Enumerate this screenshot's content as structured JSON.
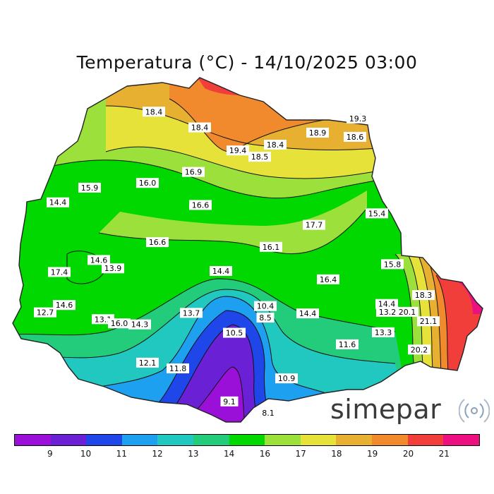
{
  "title": "Temperatura (°C) - 14/10/2025 03:00",
  "brand": "simepar",
  "icons": {
    "brand_mark": "radar-waves-icon"
  },
  "legend": {
    "colors": [
      "#9a10d8",
      "#6a21d6",
      "#1f46e8",
      "#1ea0f0",
      "#20c8c0",
      "#22cc7a",
      "#00d800",
      "#9ce03c",
      "#e6e23a",
      "#e8b030",
      "#f08a2c",
      "#f23e3a",
      "#ec1080"
    ],
    "labels": [
      "9",
      "10",
      "11",
      "12",
      "13",
      "14",
      "16",
      "17",
      "18",
      "19",
      "20",
      "21"
    ]
  },
  "map": {
    "value_labels": [
      {
        "text": "18.4",
        "lon": -52.62,
        "lat": -22.95
      },
      {
        "text": "18.4",
        "lon": -51.97,
        "lat": -23.25
      },
      {
        "text": "19.3",
        "lon": -49.73,
        "lat": -23.08
      },
      {
        "text": "18.9",
        "lon": -50.3,
        "lat": -23.35
      },
      {
        "text": "18.6",
        "lon": -49.77,
        "lat": -23.43
      },
      {
        "text": "19.4",
        "lon": -51.43,
        "lat": -23.69
      },
      {
        "text": "18.4",
        "lon": -50.9,
        "lat": -23.58
      },
      {
        "text": "18.5",
        "lon": -51.12,
        "lat": -23.81
      },
      {
        "text": "16.9",
        "lon": -52.06,
        "lat": -24.1
      },
      {
        "text": "16.0",
        "lon": -52.71,
        "lat": -24.31
      },
      {
        "text": "15.9",
        "lon": -53.53,
        "lat": -24.4
      },
      {
        "text": "14.4",
        "lon": -53.98,
        "lat": -24.68
      },
      {
        "text": "16.6",
        "lon": -51.96,
        "lat": -24.73
      },
      {
        "text": "15.4",
        "lon": -49.46,
        "lat": -24.89
      },
      {
        "text": "17.7",
        "lon": -50.35,
        "lat": -25.11
      },
      {
        "text": "16.6",
        "lon": -52.57,
        "lat": -25.44
      },
      {
        "text": "16.1",
        "lon": -50.96,
        "lat": -25.53
      },
      {
        "text": "14.6",
        "lon": -53.4,
        "lat": -25.78
      },
      {
        "text": "13.9",
        "lon": -53.2,
        "lat": -25.94
      },
      {
        "text": "17.4",
        "lon": -53.96,
        "lat": -26.01
      },
      {
        "text": "14.4",
        "lon": -51.67,
        "lat": -25.99
      },
      {
        "text": "15.8",
        "lon": -49.24,
        "lat": -25.86
      },
      {
        "text": "16.4",
        "lon": -50.15,
        "lat": -26.15
      },
      {
        "text": "18.3",
        "lon": -48.8,
        "lat": -26.45
      },
      {
        "text": "14.6",
        "lon": -53.89,
        "lat": -26.64
      },
      {
        "text": "12.7",
        "lon": -54.16,
        "lat": -26.78
      },
      {
        "text": "13.7",
        "lon": -52.09,
        "lat": -26.79
      },
      {
        "text": "10.4",
        "lon": -51.04,
        "lat": -26.66
      },
      {
        "text": "8.5",
        "lon": -51.04,
        "lat": -26.88
      },
      {
        "text": "14.4",
        "lon": -50.44,
        "lat": -26.8
      },
      {
        "text": "14.4",
        "lon": -49.32,
        "lat": -26.62
      },
      {
        "text": "13.2",
        "lon": -49.31,
        "lat": -26.77
      },
      {
        "text": "20.1",
        "lon": -49.03,
        "lat": -26.77
      },
      {
        "text": "13.1",
        "lon": -53.34,
        "lat": -26.91
      },
      {
        "text": "16.0",
        "lon": -53.11,
        "lat": -26.99
      },
      {
        "text": "14.3",
        "lon": -52.82,
        "lat": -27.01
      },
      {
        "text": "21.1",
        "lon": -48.73,
        "lat": -26.95
      },
      {
        "text": "13.3",
        "lon": -49.37,
        "lat": -27.16
      },
      {
        "text": "10.5",
        "lon": -51.48,
        "lat": -27.17
      },
      {
        "text": "11.6",
        "lon": -49.88,
        "lat": -27.39
      },
      {
        "text": "20.2",
        "lon": -48.86,
        "lat": -27.49
      },
      {
        "text": "12.1",
        "lon": -52.71,
        "lat": -27.74
      },
      {
        "text": "11.8",
        "lon": -52.28,
        "lat": -27.85
      },
      {
        "text": "10.9",
        "lon": -50.74,
        "lat": -28.04
      },
      {
        "text": "9.1",
        "lon": -51.55,
        "lat": -28.48
      },
      {
        "text": "8.1",
        "lon": -51.0,
        "lat": -28.7
      }
    ]
  }
}
